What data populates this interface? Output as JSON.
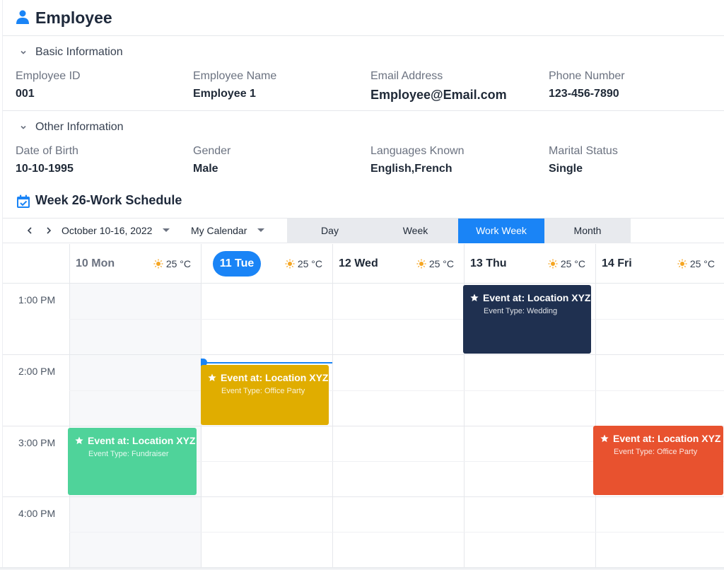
{
  "header": {
    "title": "Employee",
    "icon": "person-icon"
  },
  "basic_info": {
    "section_label": "Basic Information",
    "fields": [
      {
        "label": "Employee ID",
        "value": "001"
      },
      {
        "label": "Employee Name",
        "value": "Employee 1"
      },
      {
        "label": "Email Address",
        "value": "Employee@Email.com"
      },
      {
        "label": "Phone Number",
        "value": "123-456-7890"
      }
    ]
  },
  "other_info": {
    "section_label": "Other Information",
    "fields": [
      {
        "label": "Date of Birth",
        "value": "10-10-1995"
      },
      {
        "label": "Gender",
        "value": "Male"
      },
      {
        "label": "Languages Known",
        "value": "English,French"
      },
      {
        "label": "Marital Status",
        "value": "Single"
      }
    ]
  },
  "schedule": {
    "title": "Week 26-Work Schedule",
    "icon": "calendar-check-icon",
    "date_range": "October 10-16, 2022",
    "calendar_select": "My Calendar",
    "views": [
      "Day",
      "Week",
      "Work Week",
      "Month"
    ],
    "active_view": "Work Week",
    "days": [
      {
        "label": "10 Mon",
        "weather": "25 °C",
        "today": false
      },
      {
        "label": "11 Tue",
        "weather": "25 °C",
        "today": true
      },
      {
        "label": "12 Wed",
        "weather": "25 °C",
        "today": false
      },
      {
        "label": "13 Thu",
        "weather": "25 °C",
        "today": false
      },
      {
        "label": "14 Fri",
        "weather": "25 °C",
        "today": false
      }
    ],
    "times": [
      "1:00 PM",
      "2:00 PM",
      "3:00 PM",
      "4:00 PM"
    ],
    "events": [
      {
        "title": "Event at: Location XYZ",
        "type": "Event Type: Wedding",
        "color": "#1f3050"
      },
      {
        "title": "Event at: Location XYZ",
        "type": "Event Type: Office Party",
        "color": "#e0ad00"
      },
      {
        "title": "Event at: Location XYZ",
        "type": "Event Type: Fundraiser",
        "color": "#4fd39a"
      },
      {
        "title": "Event at: Location XYZ",
        "type": "Event Type: Office Party",
        "color": "#e8522f"
      }
    ]
  },
  "colors": {
    "accent": "#1a84f6",
    "weather_icon": "#f5a623"
  }
}
